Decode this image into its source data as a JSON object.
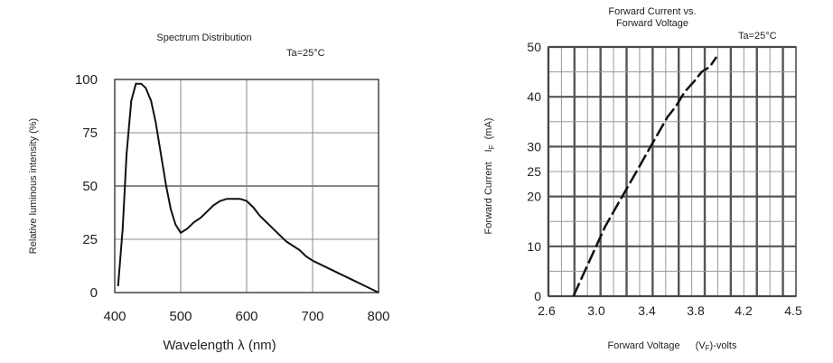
{
  "chart_data": [
    {
      "type": "line",
      "title": "Spectrum Distribution",
      "note": "Ta=25°C",
      "xlabel": "Wavelength λ (nm)",
      "ylabel": "Relative luminous intensity (%)",
      "xlim": [
        400,
        800
      ],
      "ylim": [
        0,
        100
      ],
      "xticks": [
        "400",
        "500",
        "600",
        "700",
        "800"
      ],
      "yticks": [
        "0",
        "25",
        "50",
        "75",
        "100"
      ],
      "grid": true,
      "series": [
        {
          "x": [
            405,
            412,
            418,
            425,
            432,
            440,
            447,
            455,
            462,
            470,
            478,
            485,
            492,
            500,
            510,
            520,
            530,
            540,
            550,
            560,
            570,
            580,
            590,
            600,
            610,
            620,
            630,
            640,
            650,
            660,
            670,
            680,
            690,
            700,
            720,
            740,
            760,
            780,
            800
          ],
          "y": [
            3,
            30,
            65,
            90,
            98,
            98,
            96,
            90,
            80,
            65,
            50,
            39,
            32,
            28,
            30,
            33,
            35,
            38,
            41,
            43,
            44,
            44,
            44,
            43,
            40,
            36,
            33,
            30,
            27,
            24,
            22,
            20,
            17,
            15,
            12,
            9,
            6,
            3,
            0
          ]
        }
      ]
    },
    {
      "type": "line",
      "title": "Forward Current vs.",
      "title2": "Forward Voltage",
      "note": "Ta=25°C",
      "xlabel": "Forward Voltage",
      "xlabel_unit": "(V",
      "xlabel_sub": "F",
      "xlabel_tail": ")-volts",
      "ylabel": "Forward Current",
      "ylabel_sym": "I",
      "ylabel_sub": "F",
      "ylabel_unit": "(mA)",
      "xlim": [
        2.6,
        4.5
      ],
      "ylim": [
        0,
        50
      ],
      "xticks": [
        "2.6",
        "3.0",
        "3.4",
        "3.8",
        "4.2",
        "4.5"
      ],
      "yticks": [
        "0",
        "10",
        "20",
        "25",
        "30",
        "40",
        "50"
      ],
      "grid": true,
      "series": [
        {
          "x": [
            2.82,
            2.86,
            2.92,
            3.0,
            3.1,
            3.2,
            3.3,
            3.4,
            3.5,
            3.6,
            3.65,
            3.72,
            3.8,
            3.88,
            3.95,
            4.02,
            4.08
          ],
          "y": [
            0,
            2,
            5,
            9,
            14,
            18,
            22,
            26,
            30,
            34,
            36,
            38,
            41,
            43,
            45,
            46,
            48
          ]
        }
      ]
    }
  ]
}
